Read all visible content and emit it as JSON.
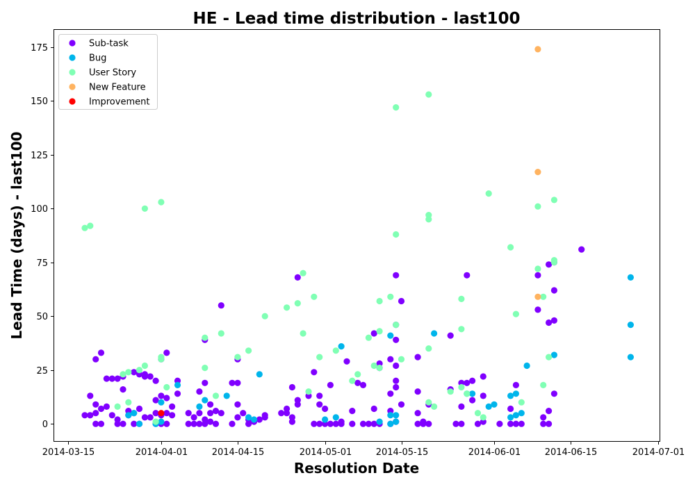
{
  "chart_data": {
    "type": "scatter",
    "title": "HE - Lead time distribution - last100",
    "xlabel": "Resolution Date",
    "ylabel": "Lead Time (days) - last100",
    "x_axis": {
      "type": "date",
      "range": [
        "2014-03-15",
        "2014-07-01"
      ],
      "ticks": [
        "2014-03-15",
        "2014-04-01",
        "2014-04-15",
        "2014-05-01",
        "2014-05-15",
        "2014-06-01",
        "2014-06-15",
        "2014-07-01"
      ]
    },
    "y_axis": {
      "range": [
        -8,
        183
      ],
      "ticks": [
        0,
        25,
        50,
        75,
        100,
        125,
        150,
        175
      ]
    },
    "grid": false,
    "legend_position": "top-left",
    "series": [
      {
        "name": "Sub-task",
        "color": "#8000ff",
        "points": [
          [
            "2014-03-18",
            4
          ],
          [
            "2014-03-19",
            13
          ],
          [
            "2014-03-19",
            4
          ],
          [
            "2014-03-20",
            30
          ],
          [
            "2014-03-20",
            9
          ],
          [
            "2014-03-20",
            0
          ],
          [
            "2014-03-20",
            5
          ],
          [
            "2014-03-21",
            33
          ],
          [
            "2014-03-21",
            7
          ],
          [
            "2014-03-21",
            0
          ],
          [
            "2014-03-22",
            8
          ],
          [
            "2014-03-22",
            21
          ],
          [
            "2014-03-23",
            21
          ],
          [
            "2014-03-23",
            4
          ],
          [
            "2014-03-24",
            21
          ],
          [
            "2014-03-24",
            2
          ],
          [
            "2014-03-24",
            0
          ],
          [
            "2014-03-25",
            16
          ],
          [
            "2014-03-25",
            22
          ],
          [
            "2014-03-25",
            0
          ],
          [
            "2014-03-26",
            4
          ],
          [
            "2014-03-26",
            6
          ],
          [
            "2014-03-27",
            24
          ],
          [
            "2014-03-27",
            0
          ],
          [
            "2014-03-27",
            5
          ],
          [
            "2014-03-28",
            23
          ],
          [
            "2014-03-28",
            0
          ],
          [
            "2014-03-28",
            7
          ],
          [
            "2014-03-29",
            23
          ],
          [
            "2014-03-29",
            22
          ],
          [
            "2014-03-29",
            3
          ],
          [
            "2014-03-30",
            22
          ],
          [
            "2014-03-30",
            3
          ],
          [
            "2014-03-31",
            20
          ],
          [
            "2014-03-31",
            11
          ],
          [
            "2014-03-31",
            5
          ],
          [
            "2014-03-31",
            0
          ],
          [
            "2014-04-01",
            30
          ],
          [
            "2014-04-01",
            13
          ],
          [
            "2014-04-01",
            4
          ],
          [
            "2014-04-01",
            0
          ],
          [
            "2014-04-02",
            33
          ],
          [
            "2014-04-02",
            12
          ],
          [
            "2014-04-02",
            5
          ],
          [
            "2014-04-02",
            0
          ],
          [
            "2014-04-03",
            8
          ],
          [
            "2014-04-03",
            4
          ],
          [
            "2014-04-04",
            20
          ],
          [
            "2014-04-04",
            14
          ],
          [
            "2014-04-06",
            5
          ],
          [
            "2014-04-06",
            0
          ],
          [
            "2014-04-07",
            3
          ],
          [
            "2014-04-07",
            0
          ],
          [
            "2014-04-08",
            15
          ],
          [
            "2014-04-08",
            5
          ],
          [
            "2014-04-08",
            0
          ],
          [
            "2014-04-09",
            19
          ],
          [
            "2014-04-09",
            39
          ],
          [
            "2014-04-09",
            2
          ],
          [
            "2014-04-09",
            0
          ],
          [
            "2014-04-10",
            9
          ],
          [
            "2014-04-10",
            5
          ],
          [
            "2014-04-10",
            1
          ],
          [
            "2014-04-11",
            6
          ],
          [
            "2014-04-11",
            0
          ],
          [
            "2014-04-12",
            55
          ],
          [
            "2014-04-12",
            5
          ],
          [
            "2014-04-14",
            19
          ],
          [
            "2014-04-14",
            0
          ],
          [
            "2014-04-15",
            30
          ],
          [
            "2014-04-15",
            19
          ],
          [
            "2014-04-15",
            9
          ],
          [
            "2014-04-15",
            3
          ],
          [
            "2014-04-16",
            5
          ],
          [
            "2014-04-17",
            2
          ],
          [
            "2014-04-17",
            0
          ],
          [
            "2014-04-18",
            1
          ],
          [
            "2014-04-19",
            2
          ],
          [
            "2014-04-20",
            4
          ],
          [
            "2014-04-20",
            3
          ],
          [
            "2014-04-23",
            5
          ],
          [
            "2014-04-24",
            7
          ],
          [
            "2014-04-24",
            5
          ],
          [
            "2014-04-25",
            17
          ],
          [
            "2014-04-25",
            3
          ],
          [
            "2014-04-25",
            1
          ],
          [
            "2014-04-26",
            68
          ],
          [
            "2014-04-26",
            11
          ],
          [
            "2014-04-26",
            9
          ],
          [
            "2014-04-28",
            13
          ],
          [
            "2014-04-29",
            24
          ],
          [
            "2014-04-29",
            0
          ],
          [
            "2014-04-30",
            9
          ],
          [
            "2014-04-30",
            13
          ],
          [
            "2014-04-30",
            0
          ],
          [
            "2014-05-01",
            7
          ],
          [
            "2014-05-01",
            0
          ],
          [
            "2014-05-02",
            18
          ],
          [
            "2014-05-02",
            0
          ],
          [
            "2014-05-03",
            0
          ],
          [
            "2014-05-04",
            0
          ],
          [
            "2014-05-04",
            1
          ],
          [
            "2014-05-05",
            29
          ],
          [
            "2014-05-06",
            6
          ],
          [
            "2014-05-06",
            0
          ],
          [
            "2014-05-07",
            19
          ],
          [
            "2014-05-08",
            18
          ],
          [
            "2014-05-08",
            0
          ],
          [
            "2014-05-09",
            0
          ],
          [
            "2014-05-10",
            42
          ],
          [
            "2014-05-10",
            7
          ],
          [
            "2014-05-10",
            0
          ],
          [
            "2014-05-11",
            28
          ],
          [
            "2014-05-11",
            26
          ],
          [
            "2014-05-11",
            0
          ],
          [
            "2014-05-13",
            30
          ],
          [
            "2014-05-13",
            14
          ],
          [
            "2014-05-13",
            6
          ],
          [
            "2014-05-13",
            0
          ],
          [
            "2014-05-14",
            69
          ],
          [
            "2014-05-14",
            46
          ],
          [
            "2014-05-14",
            39
          ],
          [
            "2014-05-14",
            27
          ],
          [
            "2014-05-14",
            20
          ],
          [
            "2014-05-14",
            17
          ],
          [
            "2014-05-14",
            1
          ],
          [
            "2014-05-15",
            57
          ],
          [
            "2014-05-15",
            9
          ],
          [
            "2014-05-18",
            31
          ],
          [
            "2014-05-18",
            15
          ],
          [
            "2014-05-18",
            5
          ],
          [
            "2014-05-18",
            0
          ],
          [
            "2014-05-19",
            1
          ],
          [
            "2014-05-19",
            0
          ],
          [
            "2014-05-20",
            9
          ],
          [
            "2014-05-20",
            0
          ],
          [
            "2014-05-24",
            41
          ],
          [
            "2014-05-24",
            16
          ],
          [
            "2014-05-25",
            0
          ],
          [
            "2014-05-26",
            19
          ],
          [
            "2014-05-26",
            8
          ],
          [
            "2014-05-26",
            0
          ],
          [
            "2014-05-27",
            69
          ],
          [
            "2014-05-27",
            19
          ],
          [
            "2014-05-28",
            20
          ],
          [
            "2014-05-28",
            11
          ],
          [
            "2014-05-29",
            0
          ],
          [
            "2014-05-30",
            13
          ],
          [
            "2014-05-30",
            22
          ],
          [
            "2014-05-30",
            1
          ],
          [
            "2014-06-02",
            0
          ],
          [
            "2014-06-04",
            7
          ],
          [
            "2014-06-04",
            0
          ],
          [
            "2014-06-05",
            18
          ],
          [
            "2014-06-05",
            0
          ],
          [
            "2014-06-06",
            0
          ],
          [
            "2014-06-09",
            53
          ],
          [
            "2014-06-09",
            69
          ],
          [
            "2014-06-10",
            3
          ],
          [
            "2014-06-10",
            0
          ],
          [
            "2014-06-11",
            74
          ],
          [
            "2014-06-11",
            47
          ],
          [
            "2014-06-11",
            6
          ],
          [
            "2014-06-11",
            0
          ],
          [
            "2014-06-12",
            75
          ],
          [
            "2014-06-12",
            48
          ],
          [
            "2014-06-12",
            14
          ],
          [
            "2014-06-12",
            62
          ],
          [
            "2014-06-17",
            81
          ]
        ]
      },
      {
        "name": "Bug",
        "color": "#00b5eb",
        "points": [
          [
            "2014-03-26",
            4
          ],
          [
            "2014-03-27",
            5
          ],
          [
            "2014-03-28",
            0
          ],
          [
            "2014-03-31",
            0
          ],
          [
            "2014-04-01",
            10
          ],
          [
            "2014-04-01",
            1
          ],
          [
            "2014-04-04",
            18
          ],
          [
            "2014-04-08",
            8
          ],
          [
            "2014-04-09",
            11
          ],
          [
            "2014-04-13",
            13
          ],
          [
            "2014-04-17",
            3
          ],
          [
            "2014-04-18",
            2
          ],
          [
            "2014-04-19",
            23
          ],
          [
            "2014-05-01",
            2
          ],
          [
            "2014-05-03",
            3
          ],
          [
            "2014-05-04",
            36
          ],
          [
            "2014-05-11",
            1
          ],
          [
            "2014-05-13",
            41
          ],
          [
            "2014-05-13",
            4
          ],
          [
            "2014-05-13",
            0
          ],
          [
            "2014-05-14",
            4
          ],
          [
            "2014-05-14",
            1
          ],
          [
            "2014-05-21",
            42
          ],
          [
            "2014-05-27",
            14
          ],
          [
            "2014-05-28",
            14
          ],
          [
            "2014-05-31",
            8
          ],
          [
            "2014-06-01",
            9
          ],
          [
            "2014-06-04",
            13
          ],
          [
            "2014-06-04",
            3
          ],
          [
            "2014-06-05",
            14
          ],
          [
            "2014-06-05",
            4
          ],
          [
            "2014-06-06",
            5
          ],
          [
            "2014-06-07",
            27
          ],
          [
            "2014-06-12",
            32
          ],
          [
            "2014-06-26",
            68
          ],
          [
            "2014-06-26",
            46
          ],
          [
            "2014-06-26",
            31
          ]
        ]
      },
      {
        "name": "User Story",
        "color": "#80ffb4",
        "points": [
          [
            "2014-03-18",
            91
          ],
          [
            "2014-03-19",
            92
          ],
          [
            "2014-03-24",
            8
          ],
          [
            "2014-03-25",
            23
          ],
          [
            "2014-03-26",
            24
          ],
          [
            "2014-03-26",
            10
          ],
          [
            "2014-03-28",
            25
          ],
          [
            "2014-03-29",
            27
          ],
          [
            "2014-03-29",
            100
          ],
          [
            "2014-03-31",
            1
          ],
          [
            "2014-04-01",
            103
          ],
          [
            "2014-04-01",
            30
          ],
          [
            "2014-04-01",
            31
          ],
          [
            "2014-04-02",
            17
          ],
          [
            "2014-04-09",
            40
          ],
          [
            "2014-04-09",
            26
          ],
          [
            "2014-04-11",
            13
          ],
          [
            "2014-04-12",
            42
          ],
          [
            "2014-04-15",
            31
          ],
          [
            "2014-04-17",
            34
          ],
          [
            "2014-04-20",
            50
          ],
          [
            "2014-04-24",
            54
          ],
          [
            "2014-04-26",
            56
          ],
          [
            "2014-04-27",
            70
          ],
          [
            "2014-04-27",
            42
          ],
          [
            "2014-04-28",
            15
          ],
          [
            "2014-04-29",
            59
          ],
          [
            "2014-04-30",
            31
          ],
          [
            "2014-05-03",
            34
          ],
          [
            "2014-05-06",
            20
          ],
          [
            "2014-05-07",
            23
          ],
          [
            "2014-05-09",
            40
          ],
          [
            "2014-05-10",
            27
          ],
          [
            "2014-05-11",
            57
          ],
          [
            "2014-05-11",
            43
          ],
          [
            "2014-05-11",
            26
          ],
          [
            "2014-05-13",
            59
          ],
          [
            "2014-05-14",
            147
          ],
          [
            "2014-05-14",
            88
          ],
          [
            "2014-05-14",
            46
          ],
          [
            "2014-05-15",
            30
          ],
          [
            "2014-05-20",
            153
          ],
          [
            "2014-05-20",
            97
          ],
          [
            "2014-05-20",
            95
          ],
          [
            "2014-05-20",
            35
          ],
          [
            "2014-05-20",
            10
          ],
          [
            "2014-05-21",
            8
          ],
          [
            "2014-05-24",
            15
          ],
          [
            "2014-05-26",
            58
          ],
          [
            "2014-05-26",
            44
          ],
          [
            "2014-05-26",
            17
          ],
          [
            "2014-05-27",
            14
          ],
          [
            "2014-05-29",
            5
          ],
          [
            "2014-05-30",
            3
          ],
          [
            "2014-05-31",
            107
          ],
          [
            "2014-06-04",
            82
          ],
          [
            "2014-06-05",
            51
          ],
          [
            "2014-06-06",
            10
          ],
          [
            "2014-06-09",
            72
          ],
          [
            "2014-06-09",
            101
          ],
          [
            "2014-06-10",
            59
          ],
          [
            "2014-06-10",
            18
          ],
          [
            "2014-06-11",
            31
          ],
          [
            "2014-06-12",
            75
          ],
          [
            "2014-06-12",
            76
          ],
          [
            "2014-06-12",
            104
          ]
        ]
      },
      {
        "name": "New Feature",
        "color": "#ffb360",
        "points": [
          [
            "2014-06-09",
            174
          ],
          [
            "2014-06-09",
            117
          ],
          [
            "2014-06-09",
            59
          ]
        ]
      },
      {
        "name": "Improvement",
        "color": "#ff0000",
        "points": [
          [
            "2014-04-01",
            5
          ]
        ]
      }
    ]
  }
}
